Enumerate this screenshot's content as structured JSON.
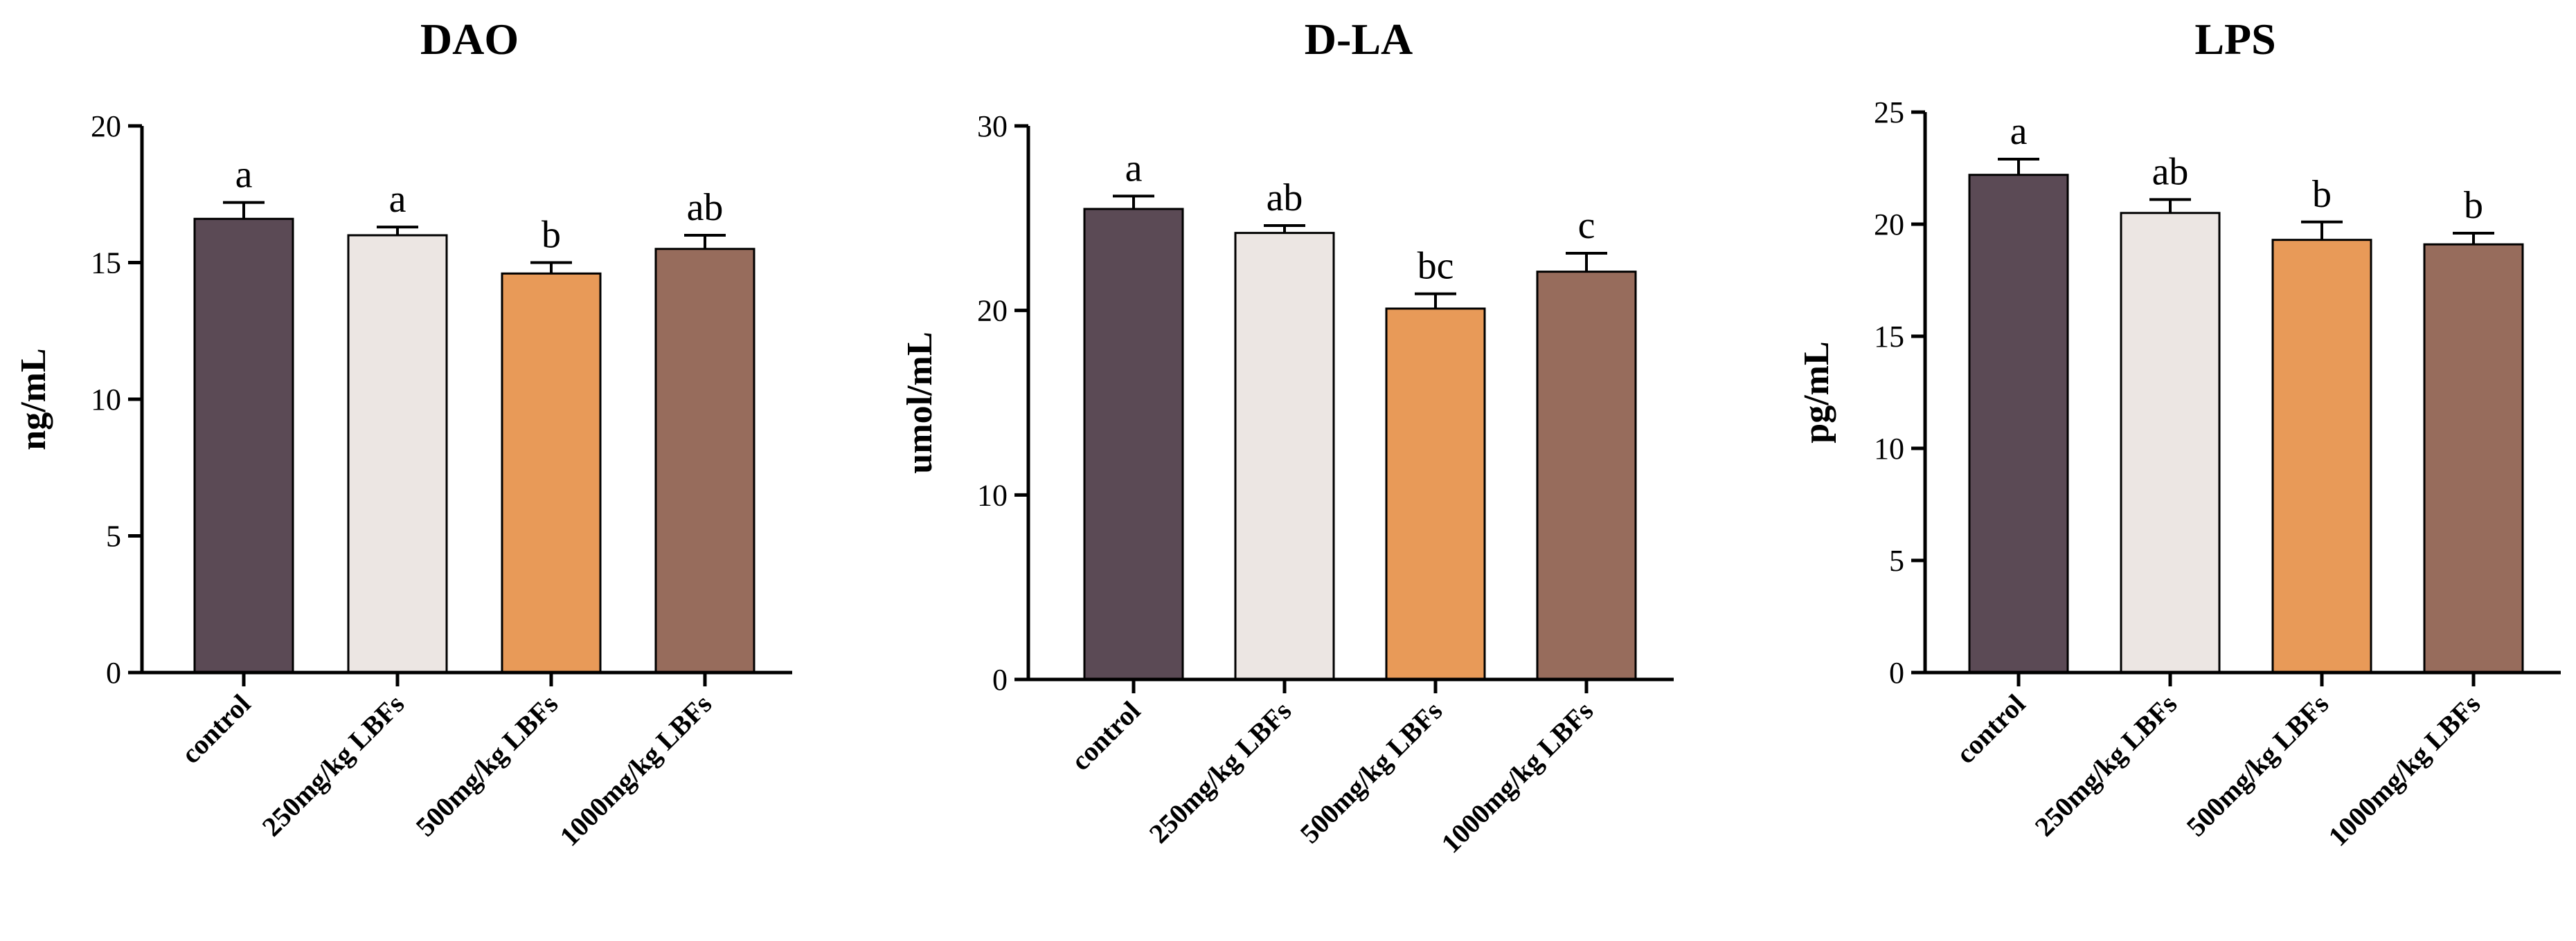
{
  "figure": {
    "description_panels": 3
  },
  "colors": {
    "control": "#5b4a55",
    "250mg/kg LBFs": "#ece6e3",
    "500mg/kg LBFs": "#e89a58",
    "1000mg/kg LBFs": "#976c5c",
    "axis": "#000000"
  },
  "chart_data": [
    {
      "type": "bar",
      "title": "DAO",
      "ylabel": "ng/mL",
      "xlabel": "",
      "ylim": [
        0,
        20
      ],
      "yticks": [
        0,
        5,
        10,
        15,
        20
      ],
      "categories": [
        "control",
        "250mg/kg LBFs",
        "500mg/kg LBFs",
        "1000mg/kg LBFs"
      ],
      "values": [
        16.6,
        16.0,
        14.6,
        15.5
      ],
      "errors": [
        0.6,
        0.3,
        0.4,
        0.5
      ],
      "significance": [
        "a",
        "a",
        "b",
        "ab"
      ]
    },
    {
      "type": "bar",
      "title": "D-LA",
      "ylabel": "umol/mL",
      "xlabel": "",
      "ylim": [
        0,
        30
      ],
      "yticks": [
        0,
        10,
        20,
        30
      ],
      "categories": [
        "control",
        "250mg/kg LBFs",
        "500mg/kg LBFs",
        "1000mg/kg LBFs"
      ],
      "values": [
        25.5,
        24.2,
        20.1,
        22.1
      ],
      "errors": [
        0.7,
        0.4,
        0.8,
        1.0
      ],
      "significance": [
        "a",
        "ab",
        "bc",
        "c"
      ]
    },
    {
      "type": "bar",
      "title": "LPS",
      "ylabel": "pg/mL",
      "xlabel": "",
      "ylim": [
        0,
        25
      ],
      "yticks": [
        0,
        5,
        10,
        15,
        20,
        25
      ],
      "categories": [
        "control",
        "250mg/kg LBFs",
        "500mg/kg LBFs",
        "1000mg/kg LBFs"
      ],
      "values": [
        22.2,
        20.5,
        19.3,
        19.1
      ],
      "errors": [
        0.7,
        0.6,
        0.8,
        0.5
      ],
      "significance": [
        "a",
        "ab",
        "b",
        "b"
      ]
    }
  ]
}
